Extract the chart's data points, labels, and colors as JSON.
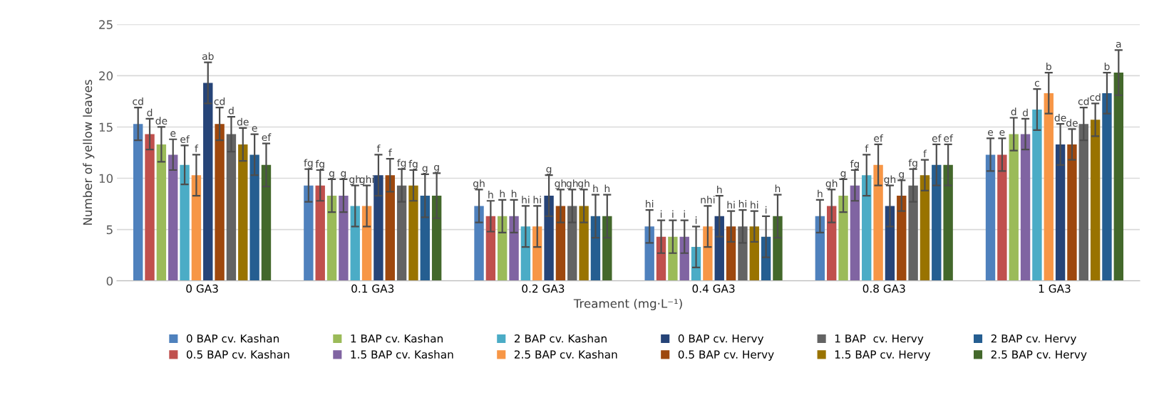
{
  "chart_data": {
    "type": "bar",
    "xlabel": "Treament (mg·L⁻¹)",
    "ylabel": "Number of yellow leaves",
    "categories": [
      "0 GA3",
      "0.1 GA3",
      "0.2 GA3",
      "0.4 GA3",
      "0.8 GA3",
      "1 GA3"
    ],
    "ylim": [
      0,
      25
    ],
    "yticks": [
      0,
      5,
      10,
      15,
      20,
      25
    ],
    "grid": "y",
    "legend": "bottom",
    "series": [
      {
        "name": "0 BAP cv. Kashan",
        "color": "#4f81bd",
        "values": [
          15.3,
          9.3,
          7.3,
          5.3,
          6.3,
          12.3
        ],
        "errors": [
          1.6,
          1.6,
          1.6,
          1.6,
          1.6,
          1.6
        ],
        "value_labels": [
          "cd",
          "fg",
          "gh",
          "hi",
          "h",
          "e"
        ]
      },
      {
        "name": "0.5 BAP cv. Kashan",
        "color": "#c0504d",
        "values": [
          14.3,
          9.3,
          6.3,
          4.3,
          7.3,
          12.3
        ],
        "errors": [
          1.5,
          1.5,
          1.5,
          1.6,
          1.6,
          1.6
        ],
        "value_labels": [
          "d",
          "fg",
          "h",
          "i",
          "gh",
          "e"
        ]
      },
      {
        "name": "1 BAP cv. Kashan",
        "color": "#9bbb59",
        "values": [
          13.3,
          8.3,
          6.3,
          4.3,
          8.3,
          14.3
        ],
        "errors": [
          1.7,
          1.6,
          1.6,
          1.6,
          1.6,
          1.6
        ],
        "value_labels": [
          "de",
          "g",
          "h",
          "i",
          "g",
          "d"
        ]
      },
      {
        "name": "1.5 BAP cv. Kashan",
        "color": "#8064a2",
        "values": [
          12.3,
          8.3,
          6.3,
          4.3,
          9.3,
          14.3
        ],
        "errors": [
          1.5,
          1.6,
          1.6,
          1.6,
          1.5,
          1.5
        ],
        "value_labels": [
          "e",
          "g",
          "h",
          "i",
          "fg",
          "d"
        ]
      },
      {
        "name": "2 BAP cv. Kashan",
        "color": "#4bacc6",
        "values": [
          11.3,
          7.3,
          5.3,
          3.3,
          10.3,
          16.7
        ],
        "errors": [
          1.9,
          2.0,
          2.0,
          2.0,
          2.0,
          2.0
        ],
        "value_labels": [
          "ef",
          "gh",
          "hi",
          "i",
          "f",
          "c"
        ]
      },
      {
        "name": "2.5 BAP cv. Kashan",
        "color": "#f79646",
        "values": [
          10.3,
          7.3,
          5.3,
          5.3,
          11.3,
          18.3
        ],
        "errors": [
          2.0,
          2.0,
          2.0,
          2.0,
          2.0,
          2.0
        ],
        "value_labels": [
          "f",
          "ghi",
          "hi",
          "nhi",
          "ef",
          "b"
        ]
      },
      {
        "name": "0 BAP cv. Hervy",
        "color": "#264478",
        "values": [
          19.3,
          10.3,
          8.3,
          6.3,
          7.3,
          13.3
        ],
        "errors": [
          2.0,
          2.0,
          2.0,
          2.0,
          2.0,
          2.0
        ],
        "value_labels": [
          "ab",
          "f",
          "g",
          "h",
          "gh",
          "de"
        ]
      },
      {
        "name": "0.5 BAP cv. Hervy",
        "color": "#9e480e",
        "values": [
          15.3,
          10.3,
          7.3,
          5.3,
          8.3,
          13.3
        ],
        "errors": [
          1.6,
          1.6,
          1.6,
          1.5,
          1.5,
          1.5
        ],
        "value_labels": [
          "cd",
          "f",
          "gh",
          "hi",
          "g",
          "de"
        ]
      },
      {
        "name": "1 BAP  cv. Hervy",
        "color": "#636363",
        "values": [
          14.3,
          9.3,
          7.3,
          5.3,
          9.3,
          15.3
        ],
        "errors": [
          1.7,
          1.6,
          1.6,
          1.6,
          1.6,
          1.6
        ],
        "value_labels": [
          "d",
          "fg",
          "gh",
          "hi",
          "fg",
          "cd"
        ]
      },
      {
        "name": "1.5 BAP cv. Hervy",
        "color": "#997300",
        "values": [
          13.3,
          9.3,
          7.3,
          5.3,
          10.3,
          15.7
        ],
        "errors": [
          1.6,
          1.5,
          1.6,
          1.5,
          1.5,
          1.6
        ],
        "value_labels": [
          "de",
          "fg",
          "gh",
          "hi",
          "f",
          "cd"
        ]
      },
      {
        "name": "2 BAP cv. Hervy",
        "color": "#255e91",
        "values": [
          12.3,
          8.3,
          6.3,
          4.3,
          11.3,
          18.3
        ],
        "errors": [
          2.0,
          2.1,
          2.1,
          2.0,
          2.0,
          2.0
        ],
        "value_labels": [
          "e",
          "g",
          "h",
          "i",
          "ef",
          "b"
        ]
      },
      {
        "name": "2.5 BAP cv. Hervy",
        "color": "#43682b",
        "values": [
          11.3,
          8.3,
          6.3,
          6.3,
          11.3,
          20.3
        ],
        "errors": [
          2.1,
          2.2,
          2.1,
          2.1,
          2.0,
          2.2
        ],
        "value_labels": [
          "ef",
          "g",
          "h",
          "h",
          "ef",
          "a"
        ]
      }
    ]
  }
}
